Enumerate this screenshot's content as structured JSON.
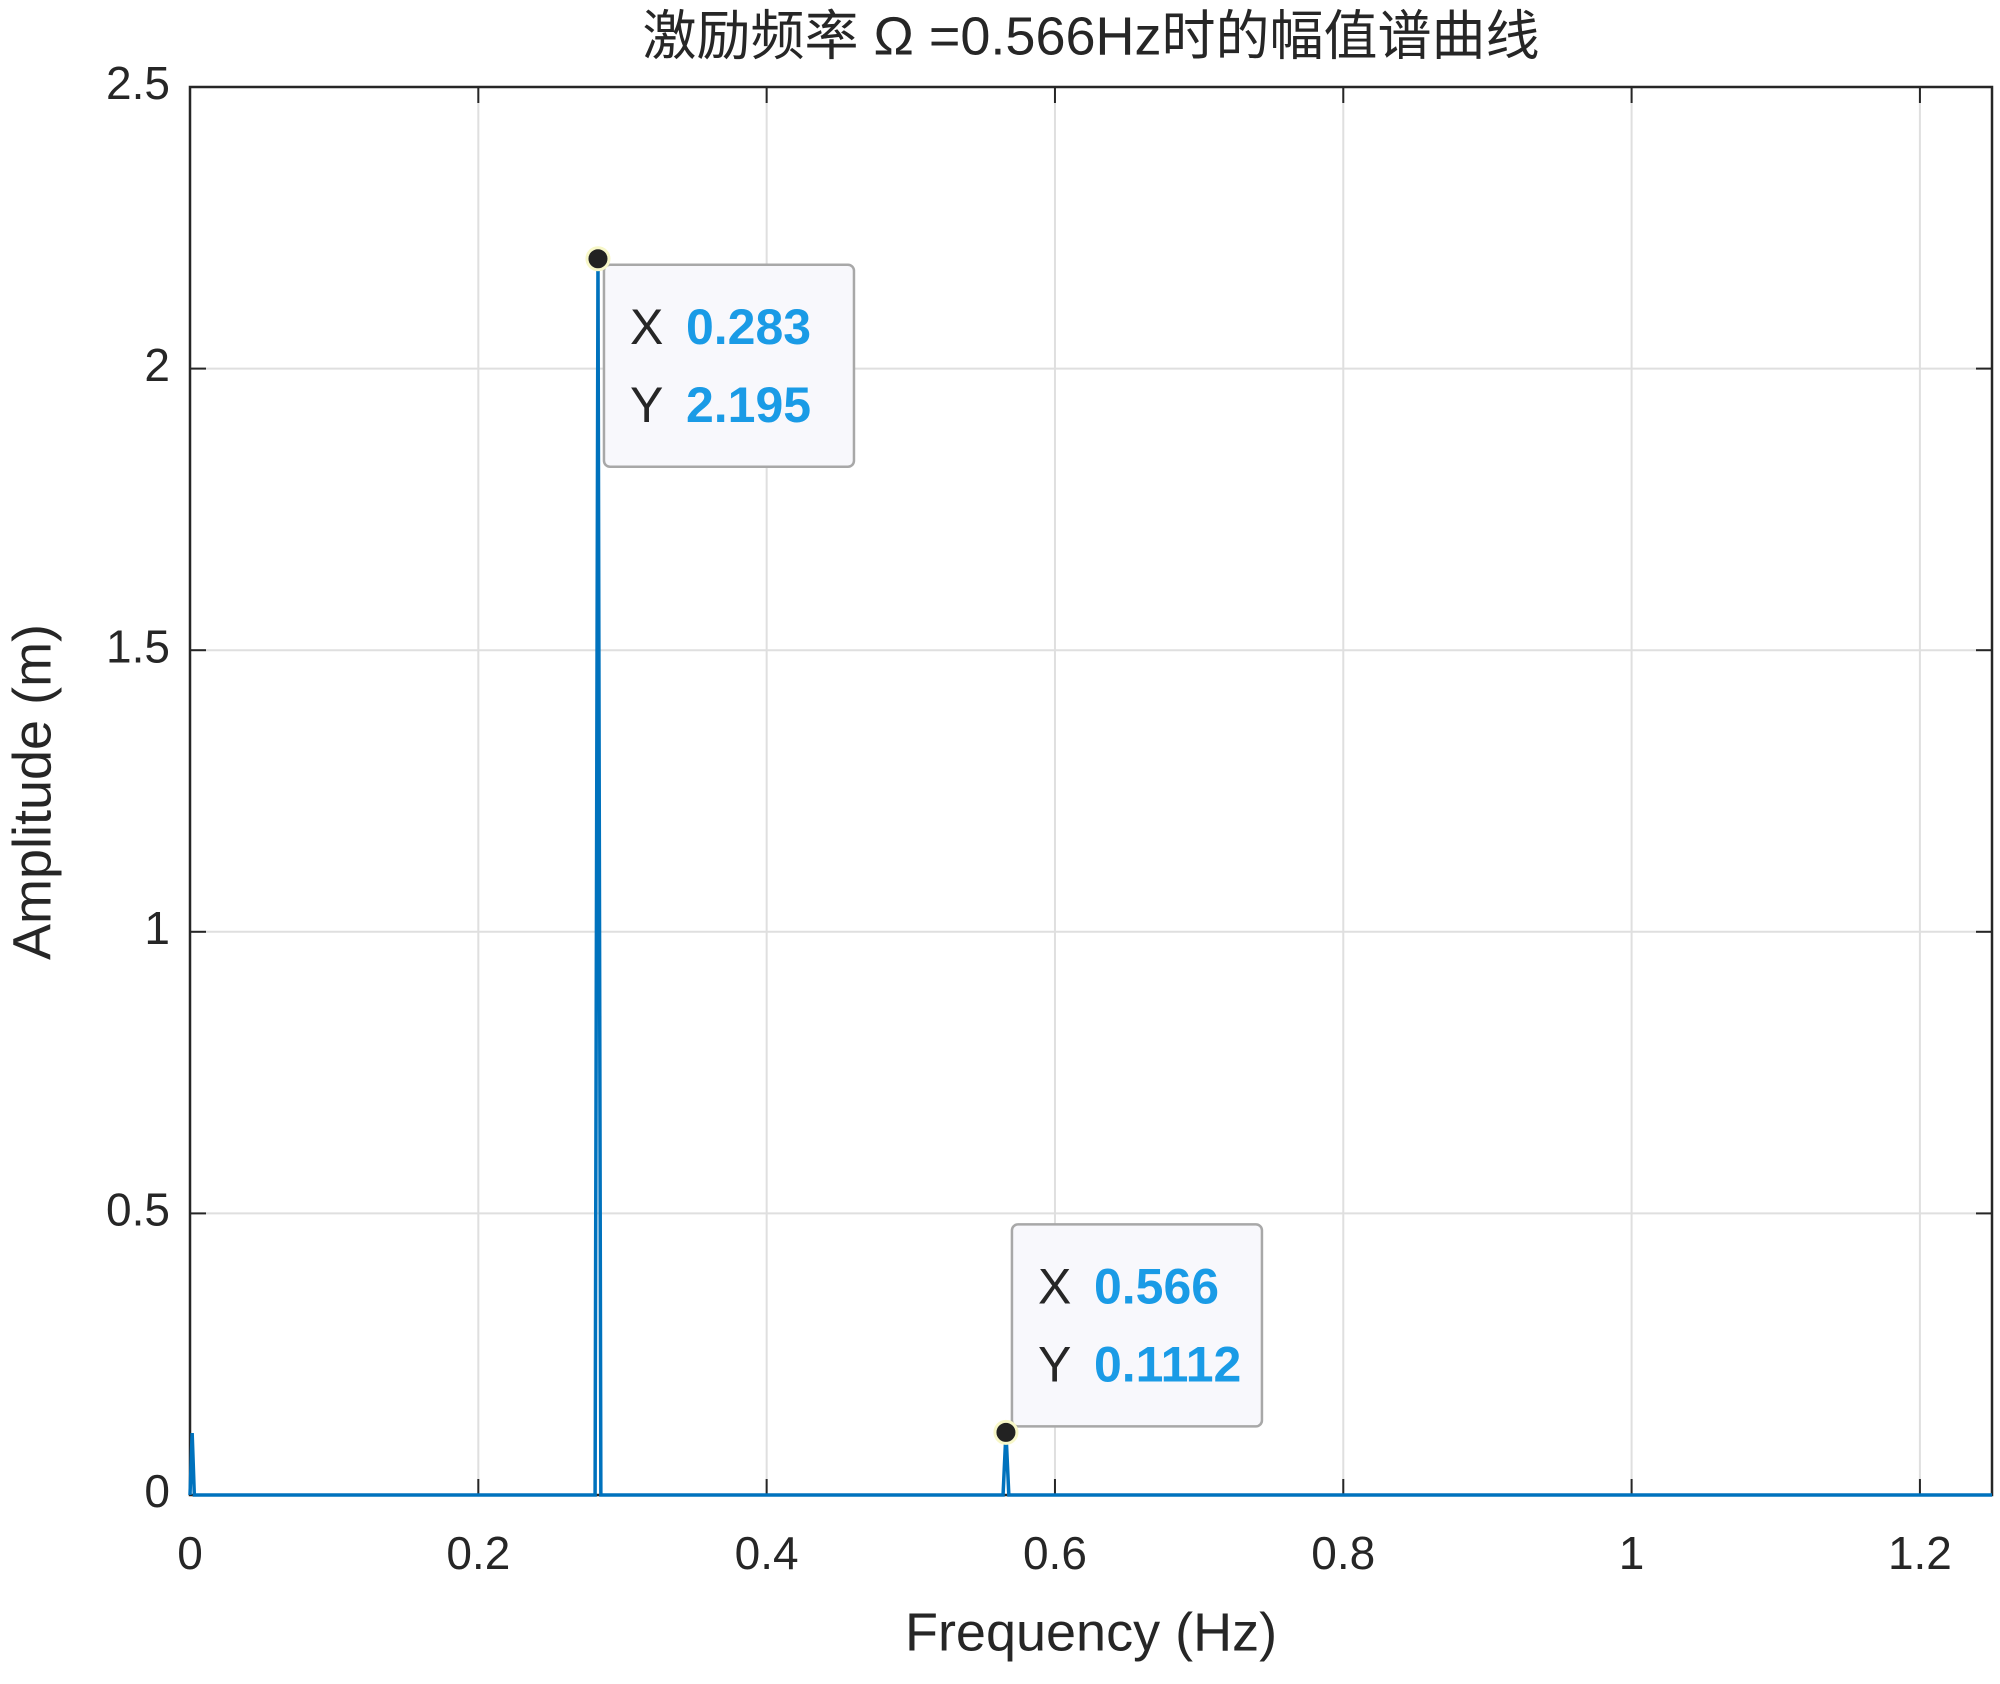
{
  "chart_data": {
    "type": "line",
    "title": "激励频率 Ω =0.566Hz时的幅值谱曲线",
    "xlabel": "Frequency (Hz)",
    "ylabel": "Amplitude (m)",
    "x": [
      0,
      0.0015,
      0.003,
      0.281,
      0.283,
      0.285,
      0.564,
      0.566,
      0.568,
      1.25
    ],
    "series": [
      {
        "name": "Amplitude",
        "color": "#0072bd",
        "values": [
          0,
          0.11,
          0,
          0,
          2.195,
          0,
          0,
          0.1112,
          0,
          0
        ]
      }
    ],
    "xlim": [
      0,
      1.25
    ],
    "xticks": [
      0,
      0.2,
      0.4,
      0.6,
      0.8,
      1,
      1.2
    ],
    "ylim": [
      0,
      2.5
    ],
    "yticks": [
      0,
      0.5,
      1,
      1.5,
      2,
      2.5
    ],
    "grid": true,
    "datatip_labels": [
      "X",
      "Y"
    ],
    "datatips": [
      {
        "x": 0.283,
        "y": 2.195
      },
      {
        "x": 0.566,
        "y": 0.1112
      }
    ]
  }
}
